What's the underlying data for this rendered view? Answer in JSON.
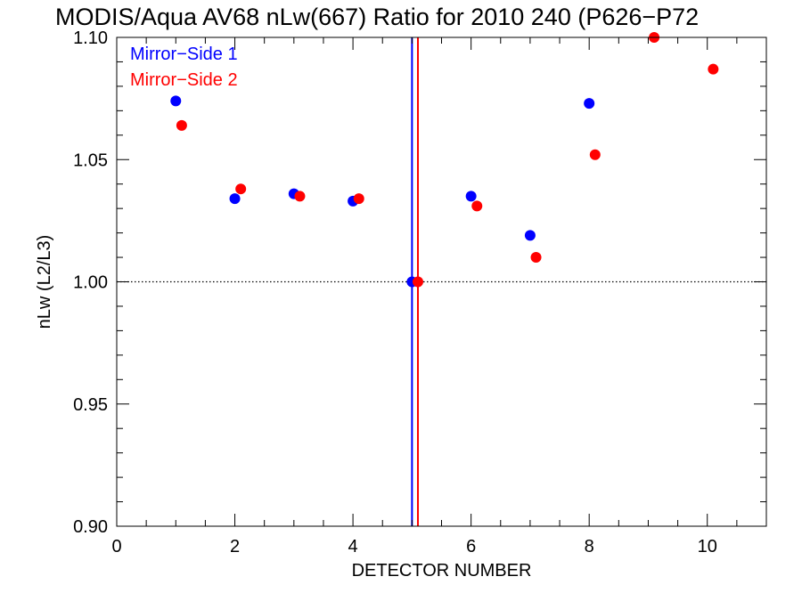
{
  "chart_data": {
    "type": "scatter",
    "title": "MODIS/Aqua AV68 nLw(667) Ratio for 2010 240 (P626−P72",
    "xlabel": "DETECTOR NUMBER",
    "ylabel": "nLw (L2/L3)",
    "xlim": [
      0,
      11
    ],
    "ylim": [
      0.9,
      1.1
    ],
    "x_ticks": [
      0,
      2,
      4,
      6,
      8,
      10
    ],
    "x_tick_labels": [
      "0",
      "2",
      "4",
      "6",
      "8",
      "10"
    ],
    "y_ticks": [
      0.9,
      0.95,
      1.0,
      1.05,
      1.1
    ],
    "y_tick_labels": [
      "0.90",
      "0.95",
      "1.00",
      "1.05",
      "1.10"
    ],
    "x_minor_step": 0.5,
    "y_minor_step": 0.01,
    "reference_line": {
      "y": 1.0,
      "style": "dotted"
    },
    "vertical_lines": [
      {
        "x": 5.0,
        "color": "#0000ff"
      },
      {
        "x": 5.1,
        "color": "#ff0000"
      }
    ],
    "legend_position": "top-left",
    "grid": false,
    "series": [
      {
        "name": "Mirror−Side 1",
        "color": "#0000ff",
        "x": [
          1,
          2,
          3,
          4,
          5,
          6,
          7,
          8
        ],
        "y": [
          1.074,
          1.034,
          1.036,
          1.033,
          1.0,
          1.035,
          1.019,
          1.073
        ]
      },
      {
        "name": "Mirror−Side 2",
        "color": "#ff0000",
        "x": [
          1.1,
          2.1,
          3.1,
          4.1,
          5.1,
          6.1,
          7.1,
          8.1,
          9.1,
          10.1
        ],
        "y": [
          1.064,
          1.038,
          1.035,
          1.034,
          1.0,
          1.031,
          1.01,
          1.052,
          1.1,
          1.087
        ]
      }
    ]
  }
}
